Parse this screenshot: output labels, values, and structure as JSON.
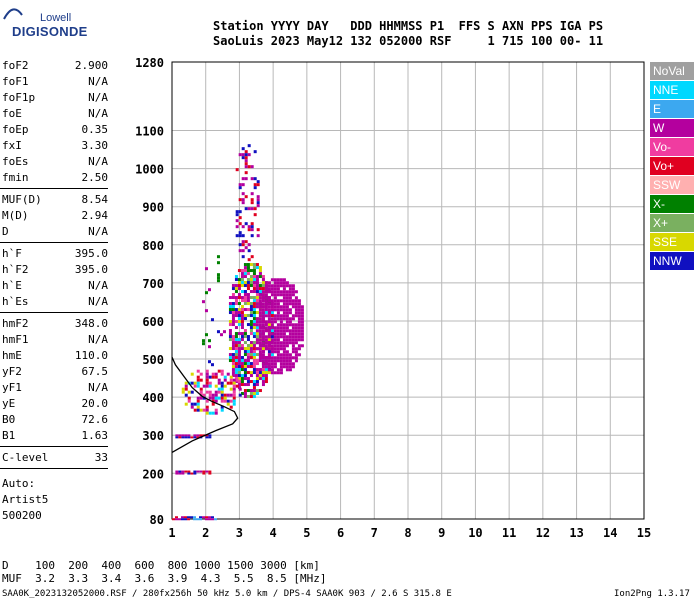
{
  "logo": {
    "top": "Lowell",
    "main": "DIGISONDE"
  },
  "header": {
    "line1": "Station YYYY DAY   DDD HHMMSS P1  FFS S AXN PPS IGA PS",
    "line2": "SaoLuis 2023 May12 132 052000 RSF     1 715 100 00- 11"
  },
  "params": [
    {
      "name": "foF2",
      "value": "2.900"
    },
    {
      "name": "foF1",
      "value": "N/A"
    },
    {
      "name": "foF1p",
      "value": "N/A"
    },
    {
      "name": "foE",
      "value": "N/A"
    },
    {
      "name": "foEp",
      "value": "0.35"
    },
    {
      "name": "fxI",
      "value": "3.30"
    },
    {
      "name": "foEs",
      "value": "N/A"
    },
    {
      "name": "fmin",
      "value": "2.50"
    },
    {
      "name": "MUF(D)",
      "value": "8.54"
    },
    {
      "name": "M(D)",
      "value": "2.94"
    },
    {
      "name": "D",
      "value": "N/A"
    },
    {
      "name": "h`F",
      "value": "395.0"
    },
    {
      "name": "h`F2",
      "value": "395.0"
    },
    {
      "name": "h`E",
      "value": "N/A"
    },
    {
      "name": "h`Es",
      "value": "N/A"
    },
    {
      "name": "hmF2",
      "value": "348.0"
    },
    {
      "name": "hmF1",
      "value": "N/A"
    },
    {
      "name": "hmE",
      "value": "110.0"
    },
    {
      "name": "yF2",
      "value": "67.5"
    },
    {
      "name": "yF1",
      "value": "N/A"
    },
    {
      "name": "yE",
      "value": "20.0"
    },
    {
      "name": "B0",
      "value": "72.6"
    },
    {
      "name": "B1",
      "value": "1.63"
    },
    {
      "name": "C-level",
      "value": "33"
    }
  ],
  "auto": {
    "line1": "Auto:",
    "line2": "Artist5",
    "line3": "500200"
  },
  "legend": [
    {
      "label": "NoVal",
      "color": "#a0a0a0"
    },
    {
      "label": "NNE",
      "color": "#00d8ff"
    },
    {
      "label": "E",
      "color": "#3ca8f0"
    },
    {
      "label": "W",
      "color": "#b4009e"
    },
    {
      "label": "Vo-",
      "color": "#f03ca0"
    },
    {
      "label": "Vo+",
      "color": "#e00020"
    },
    {
      "label": "SSW",
      "color": "#ffb0b0"
    },
    {
      "label": "X-",
      "color": "#008000"
    },
    {
      "label": "X+",
      "color": "#7ab060"
    },
    {
      "label": "SSE",
      "color": "#d8d800"
    },
    {
      "label": "NNW",
      "color": "#1010c0"
    }
  ],
  "bottom": {
    "d_line": "D    100  200  400  600  800 1000 1500 3000 [km]",
    "muf_line": "MUF  3.2  3.3  3.4  3.6  3.9  4.3  5.5  8.5 [MHz]",
    "footer_left": "SAA0K_2023132052000.RSF / 280fx256h 50 kHz 5.0 km / DPS-4 SAA0K 903 / 2.6 S 315.8 E",
    "footer_right": "Ion2Png 1.3.17"
  },
  "chart_data": {
    "type": "scatter",
    "xlim": [
      1,
      15
    ],
    "ylim": [
      80,
      1280
    ],
    "x_ticks": [
      1,
      2,
      3,
      4,
      5,
      6,
      7,
      8,
      9,
      10,
      11,
      12,
      13,
      14,
      15
    ],
    "y_ticks": [
      80,
      200,
      300,
      400,
      500,
      600,
      700,
      800,
      900,
      1000,
      1100,
      1280
    ],
    "grid": true,
    "profile_curve": [
      [
        1.0,
        255
      ],
      [
        1.6,
        285
      ],
      [
        2.3,
        312
      ],
      [
        2.8,
        330
      ],
      [
        2.95,
        345
      ],
      [
        2.85,
        362
      ],
      [
        2.55,
        375
      ],
      [
        2.2,
        388
      ],
      [
        1.9,
        402
      ],
      [
        1.6,
        425
      ],
      [
        1.35,
        455
      ],
      [
        1.1,
        485
      ],
      [
        1.0,
        505
      ]
    ],
    "fixed_traces": [
      {
        "x0": 1.0,
        "x1": 2.3,
        "y": 82,
        "colors": [
          "#1010c0",
          "#b4009e",
          "#e00020",
          "#3ca8f0"
        ]
      },
      {
        "x0": 1.1,
        "x1": 2.2,
        "y": 202,
        "colors": [
          "#1010c0",
          "#e00020",
          "#b4009e"
        ]
      },
      {
        "x0": 1.1,
        "x1": 2.1,
        "y": 297,
        "colors": [
          "#1010c0",
          "#b4009e",
          "#e00020"
        ]
      }
    ],
    "echo_clouds": [
      {
        "x0": 2.6,
        "x1": 4.0,
        "y0": 400,
        "y1": 760,
        "density": 0.75,
        "colors": [
          "#b4009e",
          "#b4009e",
          "#b4009e",
          "#f03ca0",
          "#e00020",
          "#1010c0",
          "#d8d800",
          "#008000",
          "#00d8ff",
          "#7ab060"
        ]
      },
      {
        "x0": 3.4,
        "x1": 4.9,
        "y0": 460,
        "y1": 720,
        "density": 0.85,
        "colors": [
          "#b4009e"
        ]
      },
      {
        "x0": 2.8,
        "x1": 3.6,
        "y0": 760,
        "y1": 1080,
        "density": 0.28,
        "colors": [
          "#b4009e",
          "#e00020",
          "#1010c0"
        ]
      },
      {
        "x0": 1.2,
        "x1": 3.0,
        "y0": 360,
        "y1": 480,
        "density": 0.5,
        "colors": [
          "#b4009e",
          "#e00020",
          "#1010c0",
          "#d8d800",
          "#00d8ff",
          "#f03ca0"
        ]
      },
      {
        "x0": 1.8,
        "x1": 2.6,
        "y0": 480,
        "y1": 820,
        "density": 0.08,
        "colors": [
          "#1010c0",
          "#b4009e",
          "#008000"
        ]
      }
    ]
  }
}
